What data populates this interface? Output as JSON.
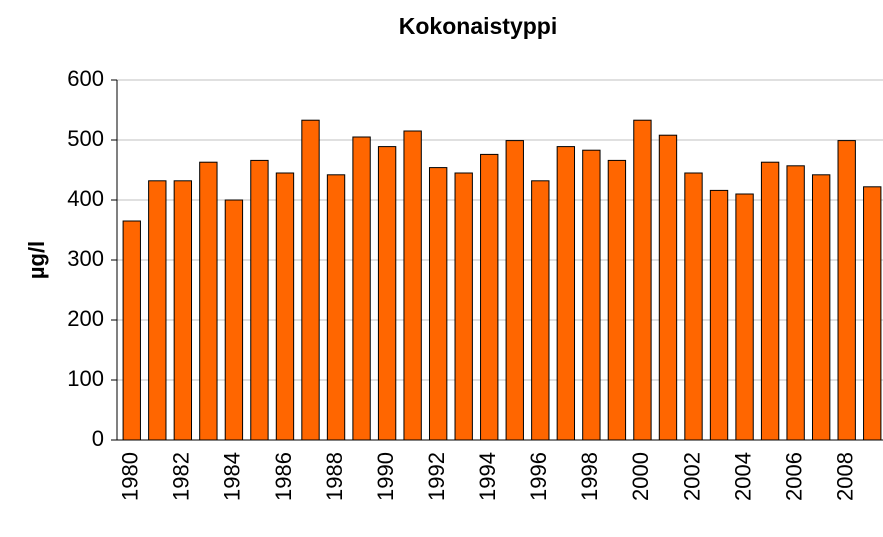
{
  "chart_data": {
    "type": "bar",
    "title": "Kokonaistyppi",
    "y_label": "µg/l",
    "categories": [
      "1980",
      null,
      "1982",
      null,
      "1984",
      null,
      "1986",
      null,
      "1988",
      null,
      "1990",
      null,
      "1992",
      null,
      "1994",
      null,
      "1996",
      null,
      "1998",
      null,
      "2000",
      null,
      "2002",
      null,
      "2004",
      null,
      "2006",
      null,
      "2008",
      null
    ],
    "values": [
      365,
      432,
      432,
      463,
      400,
      466,
      445,
      533,
      442,
      505,
      489,
      515,
      454,
      445,
      476,
      499,
      432,
      489,
      483,
      466,
      533,
      508,
      445,
      416,
      410,
      463,
      457,
      442,
      499,
      422
    ],
    "color": "#ff6600",
    "ylim": [
      0,
      600
    ],
    "yticks": [
      0,
      100,
      200,
      300,
      400,
      500,
      600
    ],
    "grid": true
  }
}
